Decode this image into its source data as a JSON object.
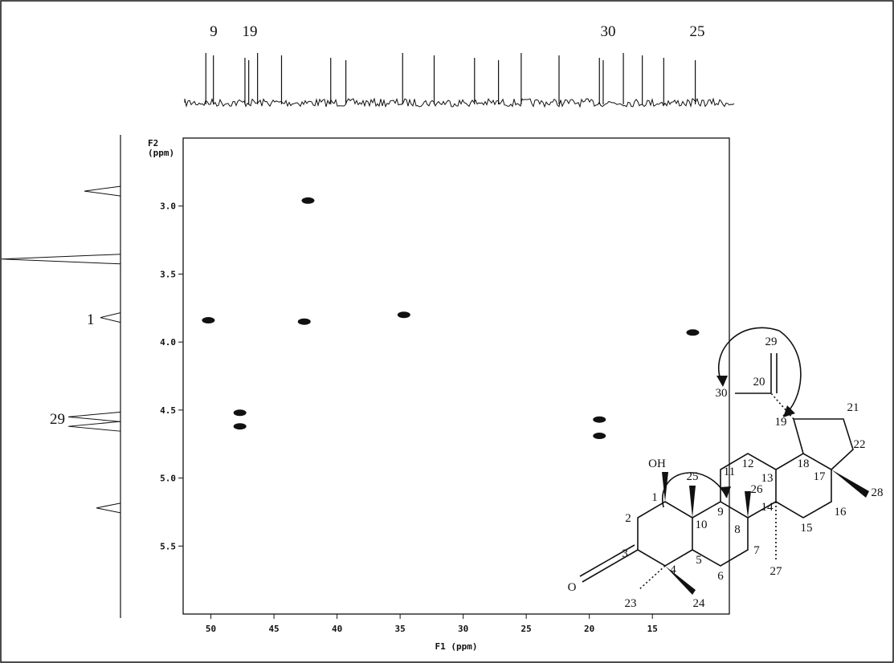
{
  "chart_data": {
    "type": "scatter",
    "x_label": "F1 (ppm)",
    "y_label": [
      "F2",
      "(ppm)"
    ],
    "x": [
      42.3,
      50.2,
      42.6,
      34.7,
      11.8,
      47.7,
      47.7,
      19.2,
      19.2
    ],
    "y": [
      2.96,
      3.84,
      3.85,
      3.8,
      3.93,
      4.52,
      4.62,
      4.57,
      4.69
    ],
    "xlim": [
      52.2,
      8.9
    ],
    "ylim": [
      2.5,
      6.0
    ],
    "xticks": [
      50,
      45,
      40,
      35,
      30,
      25,
      20,
      15
    ],
    "yticks": [
      {
        "value": 3,
        "label": "3.0"
      },
      {
        "value": 3.5,
        "label": "3.5"
      },
      {
        "value": 4,
        "label": "4.0"
      },
      {
        "value": 4.5,
        "label": "4.5"
      },
      {
        "value": 5,
        "label": "5.0"
      },
      {
        "value": 5.5,
        "label": "5.5"
      }
    ],
    "color": "#111111",
    "top_spectrum": {
      "peaks": [
        50.4,
        49.8,
        47.3,
        47.0,
        46.3,
        44.4,
        40.5,
        39.3,
        34.8,
        32.3,
        29.1,
        27.2,
        25.4,
        22.4,
        19.2,
        18.9,
        17.3,
        15.8,
        14.1,
        11.6
      ],
      "labels": [
        "9",
        "19",
        "30",
        "25"
      ]
    },
    "left_spectrum": {
      "peaks": [
        2.89,
        3.39,
        3.82,
        4.55,
        4.62,
        5.22
      ],
      "labels": [
        "1",
        "29"
      ]
    }
  },
  "structure": {
    "atoms": [
      "OH",
      "1",
      "2",
      "3",
      "4",
      "5",
      "6",
      "7",
      "8",
      "9",
      "10",
      "11",
      "12",
      "13",
      "14",
      "15",
      "16",
      "17",
      "18",
      "19",
      "20",
      "21",
      "22",
      "23",
      "24",
      "25",
      "26",
      "27",
      "28",
      "29",
      "30",
      "O"
    ]
  }
}
